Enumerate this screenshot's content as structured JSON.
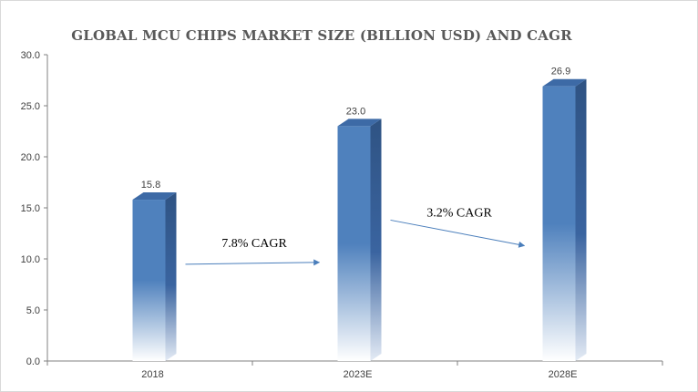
{
  "chart_data": {
    "type": "bar",
    "title": "GLOBAL MCU CHIPS MARKET SIZE (BILLION USD) AND CAGR",
    "categories": [
      "2018",
      "2023E",
      "2028E"
    ],
    "values": [
      15.8,
      23.0,
      26.9
    ],
    "value_labels": [
      "15.8",
      "23.0",
      "26.9"
    ],
    "ylim": [
      0,
      30
    ],
    "yticks": [
      "0.0",
      "5.0",
      "10.0",
      "15.0",
      "20.0",
      "25.0",
      "30.0"
    ],
    "xlabel": "",
    "ylabel": "",
    "grid": false,
    "bar_color": "#4f81bd",
    "annotations": [
      {
        "text": "7.8% CAGR",
        "from": "2018",
        "to": "2023E"
      },
      {
        "text": "3.2% CAGR",
        "from": "2023E",
        "to": "2028E"
      }
    ]
  }
}
